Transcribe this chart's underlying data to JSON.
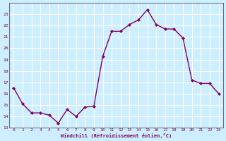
{
  "x": [
    0,
    1,
    2,
    3,
    4,
    5,
    6,
    7,
    8,
    9,
    10,
    11,
    12,
    13,
    14,
    15,
    16,
    17,
    18,
    19,
    20,
    21,
    22,
    23
  ],
  "y": [
    16.5,
    15.1,
    14.3,
    14.3,
    14.1,
    13.4,
    14.6,
    14.0,
    14.8,
    14.9,
    19.3,
    21.5,
    21.5,
    22.1,
    22.5,
    23.4,
    22.1,
    21.7,
    21.7,
    20.9,
    17.2,
    16.9,
    16.9,
    16.0
  ],
  "line_color": "#7f0060",
  "marker": "D",
  "marker_size": 2.0,
  "bg_color": "#cceeff",
  "grid_color": "#ffffff",
  "xlabel": "Windchill (Refroidissement éolien,°C)",
  "xlabel_color": "#7f0060",
  "tick_color": "#7f0060",
  "ylim": [
    13,
    24
  ],
  "xlim": [
    -0.5,
    23.5
  ],
  "yticks": [
    13,
    14,
    15,
    16,
    17,
    18,
    19,
    20,
    21,
    22,
    23
  ],
  "xticks": [
    0,
    1,
    2,
    3,
    4,
    5,
    6,
    7,
    8,
    9,
    10,
    11,
    12,
    13,
    14,
    15,
    16,
    17,
    18,
    19,
    20,
    21,
    22,
    23
  ],
  "linewidth": 1.0
}
